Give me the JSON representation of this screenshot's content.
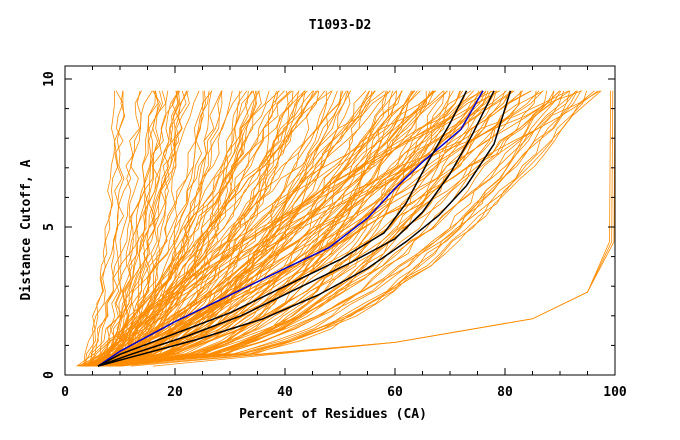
{
  "chart_data": {
    "type": "line",
    "title": "T1093-D2",
    "xlabel": "Percent of Residues (CA)",
    "ylabel": "Distance Cutoff, A",
    "xlim": [
      0,
      100
    ],
    "ylim": [
      0,
      10
    ],
    "x_ticks": [
      "0",
      "20",
      "40",
      "60",
      "80",
      "100"
    ],
    "y_ticks": [
      "0",
      "5",
      "10"
    ],
    "grid": false,
    "legend": "none",
    "colors": {
      "background_models": "#ff8c00",
      "highlight_model_a": "#0000cc",
      "highlight_model_b": "#000000",
      "axis": "#000000"
    },
    "series": [
      {
        "role": "highlight-blue",
        "x": [
          6,
          10,
          20,
          30,
          40,
          48,
          55,
          60,
          65,
          72,
          76
        ],
        "y": [
          0.3,
          0.8,
          1.8,
          2.7,
          3.6,
          4.3,
          5.3,
          6.3,
          7.2,
          8.3,
          9.6
        ]
      },
      {
        "role": "highlight-black",
        "x": [
          6,
          10,
          20,
          30,
          40,
          50,
          58,
          62,
          66,
          70,
          73
        ],
        "y": [
          0.3,
          0.7,
          1.4,
          2.1,
          3.0,
          3.9,
          4.8,
          5.8,
          7.2,
          8.5,
          9.6
        ]
      },
      {
        "role": "highlight-black",
        "x": [
          6,
          12,
          22,
          32,
          42,
          52,
          60,
          65,
          70,
          74,
          78
        ],
        "y": [
          0.3,
          0.7,
          1.3,
          2.0,
          2.9,
          3.8,
          4.6,
          5.5,
          6.8,
          8.1,
          9.6
        ]
      },
      {
        "role": "highlight-black",
        "x": [
          6,
          12,
          24,
          36,
          46,
          55,
          62,
          68,
          73,
          78,
          81
        ],
        "y": [
          0.3,
          0.6,
          1.2,
          1.9,
          2.7,
          3.6,
          4.5,
          5.4,
          6.4,
          7.8,
          9.6
        ]
      }
    ]
  }
}
